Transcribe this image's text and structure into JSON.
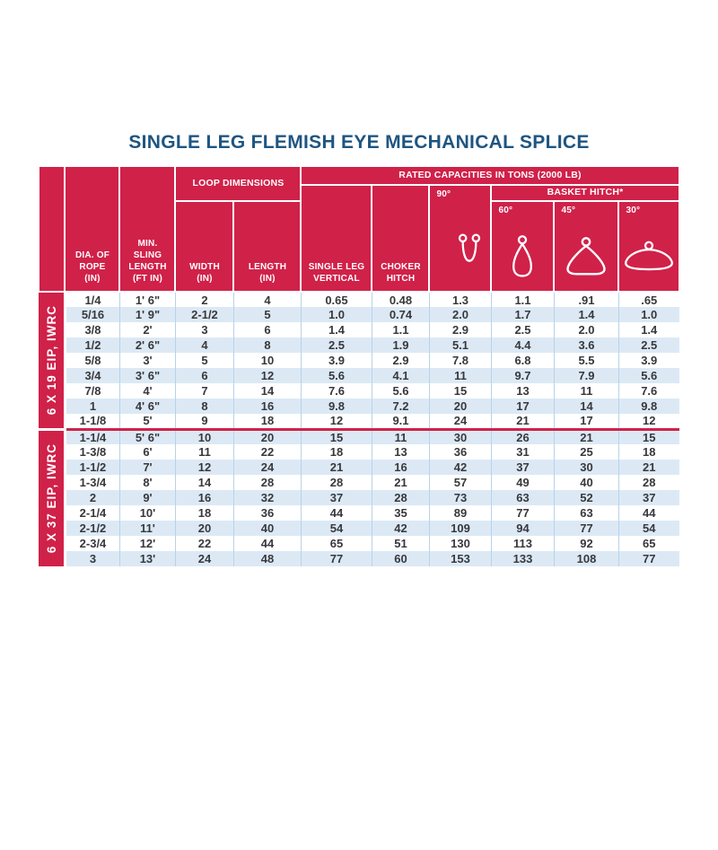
{
  "title": "SINGLE LEG FLEMISH EYE MECHANICAL SPLICE",
  "colors": {
    "accent_red": "#D02149",
    "title_navy": "#1E5581",
    "row_stripe_blue": "#DCE9F5",
    "grid_line_blue": "#B8D2E8"
  },
  "table": {
    "header": {
      "rated_capacities": "RATED CAPACITIES IN TONS (2000 LB)",
      "loop_dimensions": "LOOP DIMENSIONS",
      "basket_hitch": "BASKET HITCH*",
      "dia_of_rope": "DIA. OF\nROPE\n(IN)",
      "min_sling_length": "MIN.\nSLING\nLENGTH\n(FT IN)",
      "loop_width": "WIDTH\n(IN)",
      "loop_length": "LENGTH\n(IN)",
      "single_leg_vertical": "SINGLE LEG\nVERTICAL",
      "choker_hitch": "CHOKER\nHITCH",
      "angle_90": "90°",
      "angle_60": "60°",
      "angle_45": "45°",
      "angle_30": "30°"
    },
    "icons": {
      "deg_90": "vertical-u-sling-icon",
      "deg_60": "narrow-basket-loop-icon",
      "deg_45": "medium-basket-loop-icon",
      "deg_30": "wide-basket-loop-icon"
    },
    "sections": [
      {
        "label": "6 X 19 EIP, IWRC",
        "rows": [
          [
            "1/4",
            "1' 6\"",
            "2",
            "4",
            "0.65",
            "0.48",
            "1.3",
            "1.1",
            ".91",
            ".65"
          ],
          [
            "5/16",
            "1' 9\"",
            "2-1/2",
            "5",
            "1.0",
            "0.74",
            "2.0",
            "1.7",
            "1.4",
            "1.0"
          ],
          [
            "3/8",
            "2'",
            "3",
            "6",
            "1.4",
            "1.1",
            "2.9",
            "2.5",
            "2.0",
            "1.4"
          ],
          [
            "1/2",
            "2' 6\"",
            "4",
            "8",
            "2.5",
            "1.9",
            "5.1",
            "4.4",
            "3.6",
            "2.5"
          ],
          [
            "5/8",
            "3'",
            "5",
            "10",
            "3.9",
            "2.9",
            "7.8",
            "6.8",
            "5.5",
            "3.9"
          ],
          [
            "3/4",
            "3' 6\"",
            "6",
            "12",
            "5.6",
            "4.1",
            "11",
            "9.7",
            "7.9",
            "5.6"
          ],
          [
            "7/8",
            "4'",
            "7",
            "14",
            "7.6",
            "5.6",
            "15",
            "13",
            "11",
            "7.6"
          ],
          [
            "1",
            "4' 6\"",
            "8",
            "16",
            "9.8",
            "7.2",
            "20",
            "17",
            "14",
            "9.8"
          ],
          [
            "1-1/8",
            "5'",
            "9",
            "18",
            "12",
            "9.1",
            "24",
            "21",
            "17",
            "12"
          ]
        ]
      },
      {
        "label": "6 X 37 EIP, IWRC",
        "rows": [
          [
            "1-1/4",
            "5' 6\"",
            "10",
            "20",
            "15",
            "11",
            "30",
            "26",
            "21",
            "15"
          ],
          [
            "1-3/8",
            "6'",
            "11",
            "22",
            "18",
            "13",
            "36",
            "31",
            "25",
            "18"
          ],
          [
            "1-1/2",
            "7'",
            "12",
            "24",
            "21",
            "16",
            "42",
            "37",
            "30",
            "21"
          ],
          [
            "1-3/4",
            "8'",
            "14",
            "28",
            "28",
            "21",
            "57",
            "49",
            "40",
            "28"
          ],
          [
            "2",
            "9'",
            "16",
            "32",
            "37",
            "28",
            "73",
            "63",
            "52",
            "37"
          ],
          [
            "2-1/4",
            "10'",
            "18",
            "36",
            "44",
            "35",
            "89",
            "77",
            "63",
            "44"
          ],
          [
            "2-1/2",
            "11'",
            "20",
            "40",
            "54",
            "42",
            "109",
            "94",
            "77",
            "54"
          ],
          [
            "2-3/4",
            "12'",
            "22",
            "44",
            "65",
            "51",
            "130",
            "113",
            "92",
            "65"
          ],
          [
            "3",
            "13'",
            "24",
            "48",
            "77",
            "60",
            "153",
            "133",
            "108",
            "77"
          ]
        ]
      }
    ]
  }
}
